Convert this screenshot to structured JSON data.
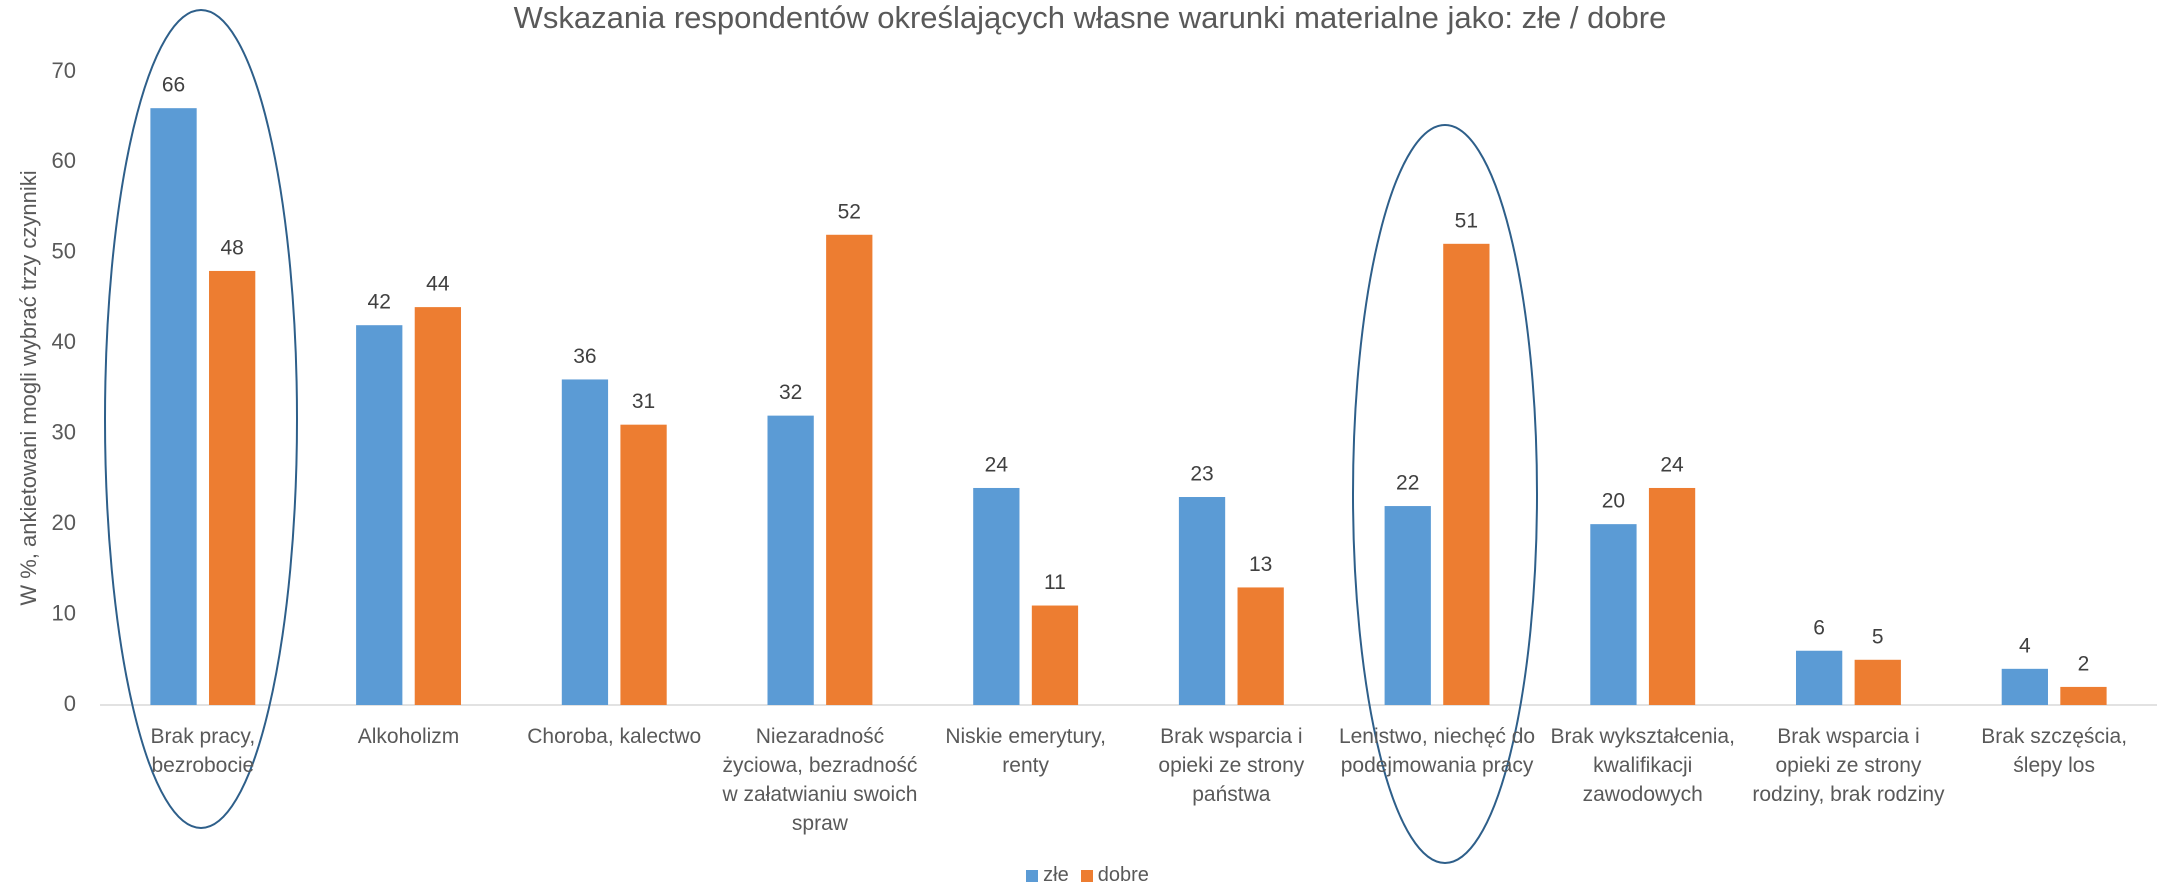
{
  "chart_data": {
    "type": "bar",
    "title": "Wskazania respondentów określających własne warunki materialne jako: złe / dobre",
    "y_label": "W %, ankietowani mogli wybrać trzy czynniki",
    "categories": [
      "Brak pracy, bezrobocie",
      "Alkoholizm",
      "Choroba, kalectwo",
      "Niezaradność życiowa, bezradność w załatwianiu swoich spraw",
      "Niskie emerytury, renty",
      "Brak wsparcia i opieki ze strony państwa",
      "Lenistwo, niechęć do podejmowania pracy",
      "Brak wykształcenia, kwalifikacji zawodowych",
      "Brak wsparcia i opieki ze strony rodziny, brak rodziny",
      "Brak szczęścia, ślepy los"
    ],
    "series": [
      {
        "name": "złe",
        "color": "#5b9bd5",
        "values": [
          66,
          42,
          36,
          32,
          24,
          23,
          22,
          20,
          6,
          4
        ]
      },
      {
        "name": "dobre",
        "color": "#ed7d31",
        "values": [
          48,
          44,
          31,
          52,
          11,
          13,
          51,
          24,
          5,
          2
        ]
      }
    ],
    "ylim": [
      0,
      70
    ],
    "yticks": [
      0,
      10,
      20,
      30,
      40,
      50,
      60,
      70
    ],
    "grid": false,
    "legend": "bottom"
  }
}
